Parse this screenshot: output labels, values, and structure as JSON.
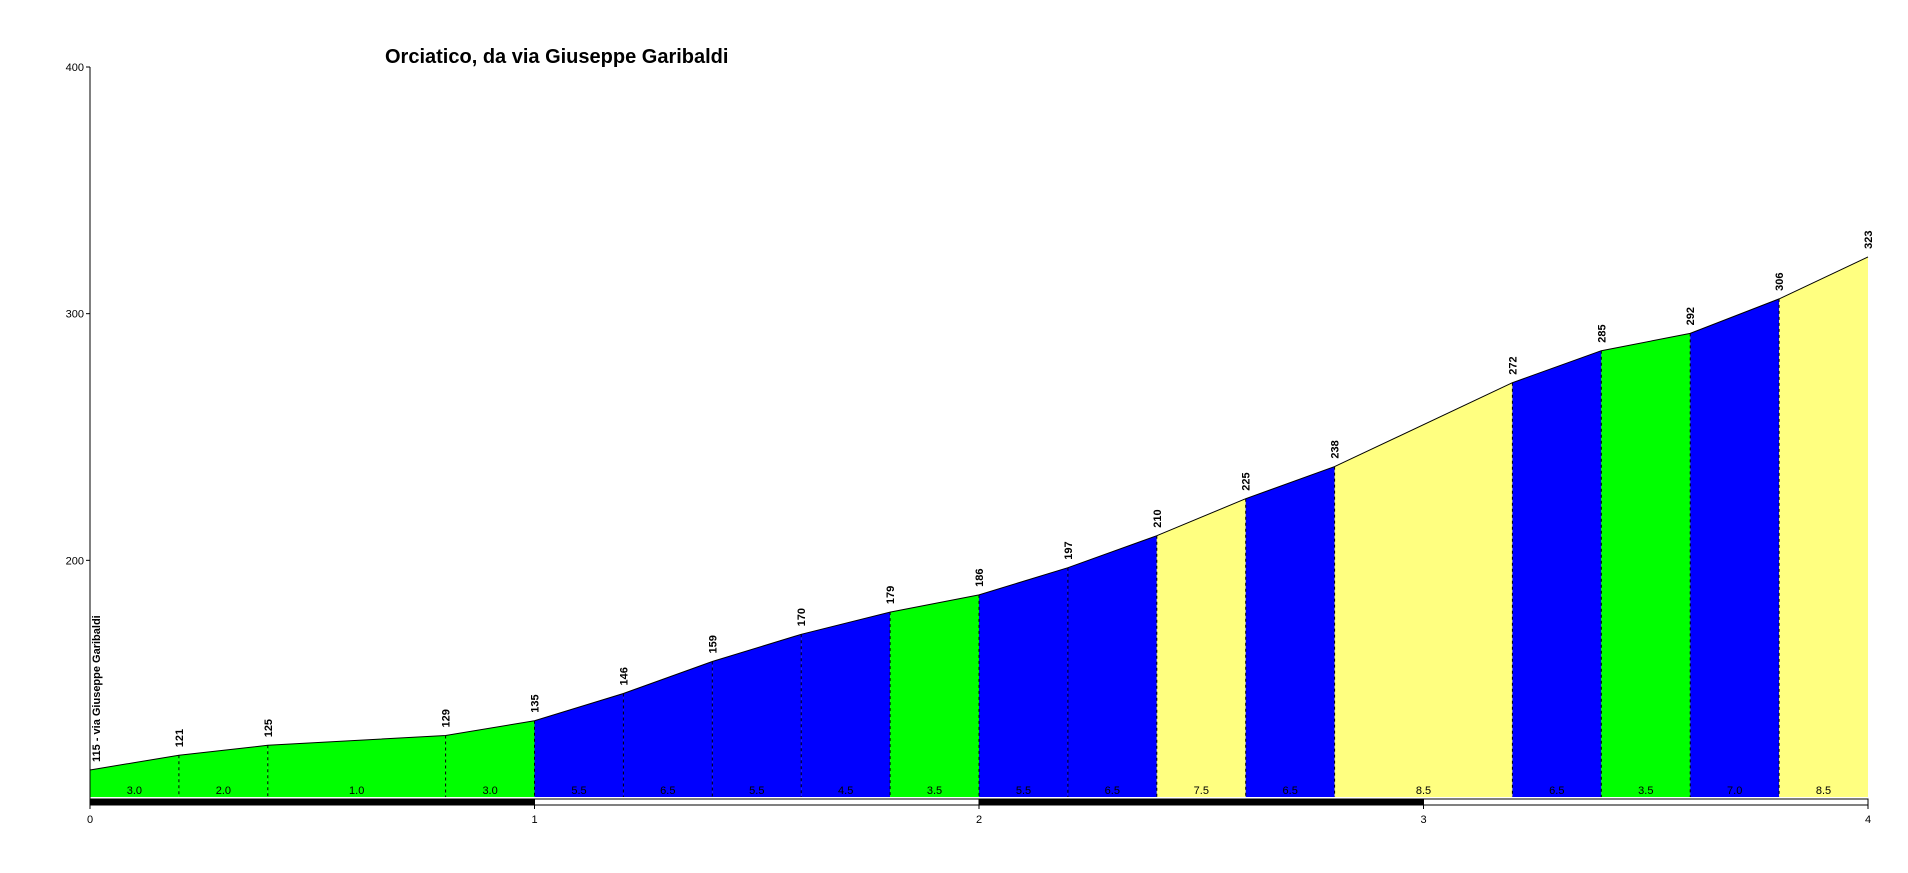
{
  "chart_data": {
    "type": "area",
    "title": "Orciatico, da via Giuseppe Garibaldi",
    "xlim": [
      0,
      4
    ],
    "ylim": [
      100,
      400
    ],
    "x_ticks": [
      "0",
      "1",
      "2",
      "3",
      "4"
    ],
    "y_ticks": [
      "200",
      "300",
      "400"
    ],
    "grid": false,
    "start_label": "115 - via Giuseppe Garibaldi",
    "profile": [
      {
        "x": 0.0,
        "y": 115
      },
      {
        "x": 0.2,
        "y": 121
      },
      {
        "x": 0.4,
        "y": 125
      },
      {
        "x": 0.8,
        "y": 129
      },
      {
        "x": 1.0,
        "y": 135
      },
      {
        "x": 1.2,
        "y": 146
      },
      {
        "x": 1.4,
        "y": 159
      },
      {
        "x": 1.6,
        "y": 170
      },
      {
        "x": 1.8,
        "y": 179
      },
      {
        "x": 2.0,
        "y": 186
      },
      {
        "x": 2.2,
        "y": 197
      },
      {
        "x": 2.4,
        "y": 210
      },
      {
        "x": 2.6,
        "y": 225
      },
      {
        "x": 2.8,
        "y": 238
      },
      {
        "x": 3.2,
        "y": 272
      },
      {
        "x": 3.4,
        "y": 285
      },
      {
        "x": 3.6,
        "y": 292
      },
      {
        "x": 3.8,
        "y": 306
      },
      {
        "x": 4.0,
        "y": 323
      }
    ],
    "elevation_labels": [
      "121",
      "125",
      "129",
      "135",
      "146",
      "159",
      "170",
      "179",
      "186",
      "197",
      "210",
      "225",
      "238",
      "272",
      "285",
      "292",
      "306",
      "323"
    ],
    "segments": [
      {
        "from": 0.0,
        "to": 0.2,
        "gradient": "3.0",
        "color": "#00ff00"
      },
      {
        "from": 0.2,
        "to": 0.4,
        "gradient": "2.0",
        "color": "#00ff00"
      },
      {
        "from": 0.4,
        "to": 0.8,
        "gradient": "1.0",
        "color": "#00ff00"
      },
      {
        "from": 0.8,
        "to": 1.0,
        "gradient": "3.0",
        "color": "#00ff00"
      },
      {
        "from": 1.0,
        "to": 1.2,
        "gradient": "5.5",
        "color": "#0000ff"
      },
      {
        "from": 1.2,
        "to": 1.4,
        "gradient": "6.5",
        "color": "#0000ff"
      },
      {
        "from": 1.4,
        "to": 1.6,
        "gradient": "5.5",
        "color": "#0000ff"
      },
      {
        "from": 1.6,
        "to": 1.8,
        "gradient": "4.5",
        "color": "#0000ff"
      },
      {
        "from": 1.8,
        "to": 2.0,
        "gradient": "3.5",
        "color": "#00ff00"
      },
      {
        "from": 2.0,
        "to": 2.2,
        "gradient": "5.5",
        "color": "#0000ff"
      },
      {
        "from": 2.2,
        "to": 2.4,
        "gradient": "6.5",
        "color": "#0000ff"
      },
      {
        "from": 2.4,
        "to": 2.6,
        "gradient": "7.5",
        "color": "#ffff80"
      },
      {
        "from": 2.6,
        "to": 2.8,
        "gradient": "6.5",
        "color": "#0000ff"
      },
      {
        "from": 2.8,
        "to": 3.2,
        "gradient": "8.5",
        "color": "#ffff80"
      },
      {
        "from": 3.2,
        "to": 3.4,
        "gradient": "6.5",
        "color": "#0000ff"
      },
      {
        "from": 3.4,
        "to": 3.6,
        "gradient": "3.5",
        "color": "#00ff00"
      },
      {
        "from": 3.6,
        "to": 3.8,
        "gradient": "7.0",
        "color": "#0000ff"
      },
      {
        "from": 3.8,
        "to": 4.0,
        "gradient": "8.5",
        "color": "#ffff80"
      }
    ]
  }
}
